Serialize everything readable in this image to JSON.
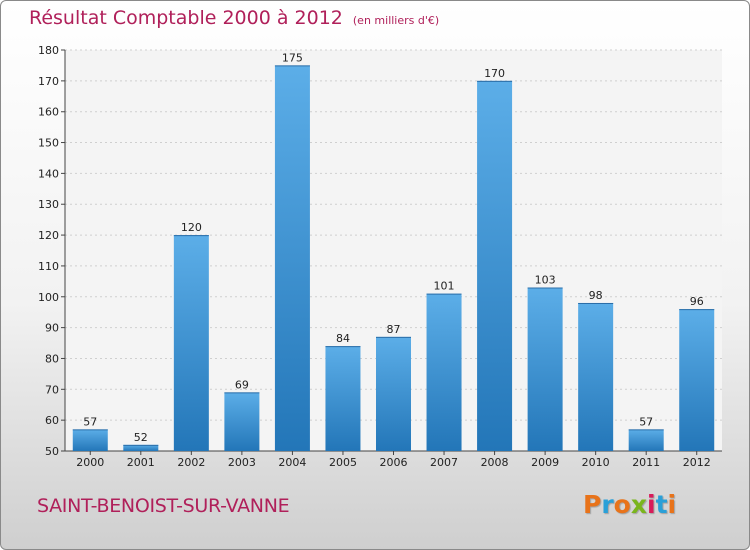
{
  "title": "Résultat Comptable 2000 à 2012",
  "subtitle": "(en milliers d'€)",
  "city": "SAINT-BENOIST-SUR-VANNE",
  "logo": {
    "text": "Proxiti",
    "colors": [
      "#e8731a",
      "#2aa0d8",
      "#e8731a",
      "#7ab51d",
      "#d81b5a",
      "#2aa0d8",
      "#e8731a"
    ]
  },
  "colors": {
    "bar_top": "#5caee8",
    "bar_bottom": "#2376b8",
    "title": "#b0205a"
  },
  "chart_data": {
    "type": "bar",
    "title": "Résultat Comptable 2000 à 2012",
    "subtitle": "(en milliers d'€)",
    "categories": [
      "2000",
      "2001",
      "2002",
      "2003",
      "2004",
      "2005",
      "2006",
      "2007",
      "2008",
      "2009",
      "2010",
      "2011",
      "2012"
    ],
    "values": [
      57,
      52,
      120,
      69,
      175,
      84,
      87,
      101,
      170,
      103,
      98,
      57,
      96
    ],
    "ylim": [
      50,
      180
    ],
    "yticks": [
      50,
      60,
      70,
      80,
      90,
      100,
      110,
      120,
      130,
      140,
      150,
      160,
      170,
      180
    ],
    "xlabel": "",
    "ylabel": ""
  }
}
